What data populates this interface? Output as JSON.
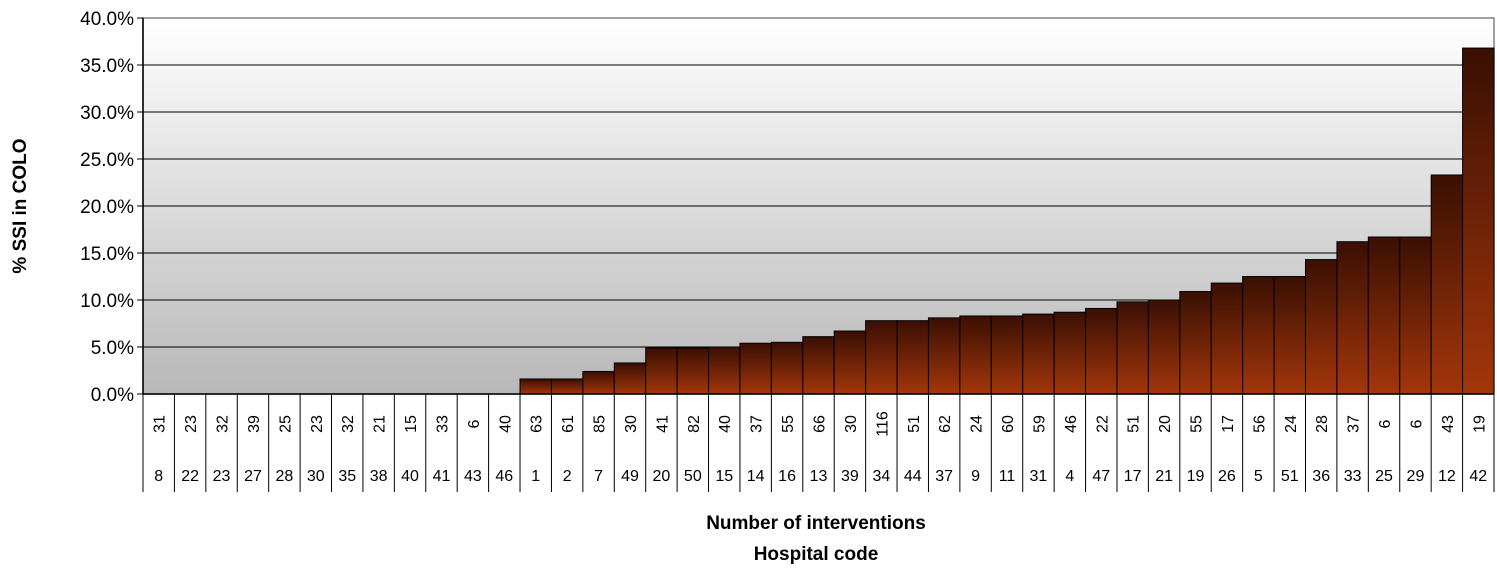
{
  "chart_data": {
    "type": "bar",
    "ylabel": "% SSI in COLO",
    "xlabel_line1": "Number of interventions",
    "xlabel_line2": "Hospital code",
    "ylim": [
      0,
      40
    ],
    "yticks": [
      "0.0%",
      "5.0%",
      "10.0%",
      "15.0%",
      "20.0%",
      "25.0%",
      "30.0%",
      "35.0%",
      "40.0%"
    ],
    "grid": true,
    "bar_colors": {
      "top": "#3a0f03",
      "bottom": "#a3360b"
    },
    "categories": [
      {
        "interventions": "31",
        "hospital": "8",
        "value": 0
      },
      {
        "interventions": "23",
        "hospital": "22",
        "value": 0
      },
      {
        "interventions": "32",
        "hospital": "23",
        "value": 0
      },
      {
        "interventions": "39",
        "hospital": "27",
        "value": 0
      },
      {
        "interventions": "25",
        "hospital": "28",
        "value": 0
      },
      {
        "interventions": "23",
        "hospital": "30",
        "value": 0
      },
      {
        "interventions": "32",
        "hospital": "35",
        "value": 0
      },
      {
        "interventions": "21",
        "hospital": "38",
        "value": 0
      },
      {
        "interventions": "15",
        "hospital": "40",
        "value": 0
      },
      {
        "interventions": "33",
        "hospital": "41",
        "value": 0
      },
      {
        "interventions": "6",
        "hospital": "43",
        "value": 0
      },
      {
        "interventions": "40",
        "hospital": "46",
        "value": 0
      },
      {
        "interventions": "63",
        "hospital": "1",
        "value": 1.6
      },
      {
        "interventions": "61",
        "hospital": "2",
        "value": 1.6
      },
      {
        "interventions": "85",
        "hospital": "7",
        "value": 2.4
      },
      {
        "interventions": "30",
        "hospital": "49",
        "value": 3.3
      },
      {
        "interventions": "41",
        "hospital": "20",
        "value": 4.9
      },
      {
        "interventions": "82",
        "hospital": "50",
        "value": 4.9
      },
      {
        "interventions": "40",
        "hospital": "15",
        "value": 5.0
      },
      {
        "interventions": "37",
        "hospital": "14",
        "value": 5.4
      },
      {
        "interventions": "55",
        "hospital": "16",
        "value": 5.5
      },
      {
        "interventions": "66",
        "hospital": "13",
        "value": 6.1
      },
      {
        "interventions": "30",
        "hospital": "39",
        "value": 6.7
      },
      {
        "interventions": "116",
        "hospital": "34",
        "value": 7.8
      },
      {
        "interventions": "51",
        "hospital": "44",
        "value": 7.8
      },
      {
        "interventions": "62",
        "hospital": "37",
        "value": 8.1
      },
      {
        "interventions": "24",
        "hospital": "9",
        "value": 8.3
      },
      {
        "interventions": "60",
        "hospital": "11",
        "value": 8.3
      },
      {
        "interventions": "59",
        "hospital": "31",
        "value": 8.5
      },
      {
        "interventions": "46",
        "hospital": "4",
        "value": 8.7
      },
      {
        "interventions": "22",
        "hospital": "47",
        "value": 9.1
      },
      {
        "interventions": "51",
        "hospital": "17",
        "value": 9.8
      },
      {
        "interventions": "20",
        "hospital": "21",
        "value": 10.0
      },
      {
        "interventions": "55",
        "hospital": "19",
        "value": 10.9
      },
      {
        "interventions": "17",
        "hospital": "26",
        "value": 11.8
      },
      {
        "interventions": "56",
        "hospital": "5",
        "value": 12.5
      },
      {
        "interventions": "24",
        "hospital": "51",
        "value": 12.5
      },
      {
        "interventions": "28",
        "hospital": "36",
        "value": 14.3
      },
      {
        "interventions": "37",
        "hospital": "33",
        "value": 16.2
      },
      {
        "interventions": "6",
        "hospital": "25",
        "value": 16.7
      },
      {
        "interventions": "6",
        "hospital": "29",
        "value": 16.7
      },
      {
        "interventions": "43",
        "hospital": "12",
        "value": 23.3
      },
      {
        "interventions": "19",
        "hospital": "42",
        "value": 36.8
      }
    ]
  }
}
